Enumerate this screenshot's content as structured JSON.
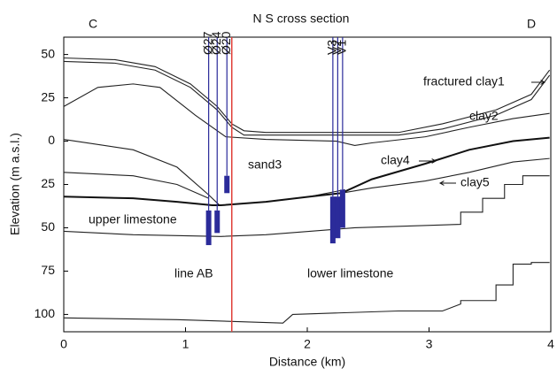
{
  "chart_data": {
    "type": "line",
    "title": "N  S cross section",
    "corner_labels": [
      "C",
      "D"
    ],
    "xlabel": "Distance (km)",
    "ylabel": "Elevation (m a.s.l.)",
    "xlim": [
      0,
      4
    ],
    "ylim": [
      -110,
      60
    ],
    "xticks": [
      0,
      1,
      2,
      3,
      4
    ],
    "yticks": [
      50,
      {
        "value": 25,
        "label": "25"
      },
      0,
      {
        "value": -25,
        "label": "25"
      },
      {
        "value": -50,
        "label": "50"
      },
      {
        "value": -75,
        "label": "75"
      },
      {
        "value": -100,
        "label": "100"
      }
    ],
    "series": [
      {
        "color": "#222222",
        "x": [
          0,
          0.42,
          0.75,
          1.04,
          1.26,
          1.38,
          1.48,
          1.66,
          2.75,
          3.11,
          3.55,
          3.84,
          3.99
        ],
        "values": [
          48,
          47,
          43,
          33,
          20,
          10,
          6,
          5,
          5,
          10,
          18,
          27,
          41
        ]
      },
      {
        "color": "#222222",
        "x": [
          0,
          0.42,
          0.75,
          1.04,
          1.26,
          1.38,
          1.48,
          1.66,
          2.75,
          3.11,
          3.55,
          3.84,
          3.99
        ],
        "values": [
          46,
          45,
          41,
          31,
          18,
          8,
          3.5,
          3.5,
          3.5,
          7,
          15,
          24,
          38
        ]
      },
      {
        "color": "#222222",
        "x": [
          0,
          0.28,
          0.57,
          0.79,
          1.08,
          1.33,
          1.66,
          2.24,
          2.39,
          2.53,
          2.97,
          3.33,
          3.69,
          3.99
        ],
        "values": [
          20,
          31,
          33,
          31,
          15,
          2.5,
          1,
          0,
          -2.5,
          -1,
          2.5,
          8,
          13,
          16
        ]
      },
      {
        "color": "#222222",
        "x": [
          0,
          0.57,
          0.93,
          1.19,
          1.28,
          1.66,
          2.02,
          2.31
        ],
        "values": [
          1,
          -5,
          -15,
          -31,
          -37,
          -35,
          -32,
          -28
        ]
      },
      {
        "color": "#111111",
        "x": [
          0,
          0.57,
          0.93,
          1.22,
          1.29,
          1.66,
          2.02,
          2.28,
          2.53,
          2.97,
          3.33,
          3.69,
          3.99
        ],
        "values": [
          -32,
          -33,
          -35,
          -37,
          -37,
          -35,
          -32,
          -30,
          -22,
          -13,
          -5,
          0,
          2
        ]
      },
      {
        "color": "#222222",
        "x": [
          2.28,
          2.53,
          2.97,
          3.33,
          3.69,
          3.99
        ],
        "values": [
          -30,
          -27,
          -23,
          -18,
          -12,
          -10
        ]
      },
      {
        "color": "#222222",
        "x": [
          0,
          0.57,
          0.93,
          1.19
        ],
        "values": [
          -18,
          -20,
          -25,
          -33
        ]
      },
      {
        "color": "#222222",
        "x": [
          0,
          0.57,
          1.29,
          1.66,
          2.39,
          3.26,
          3.26,
          3.44,
          3.44,
          3.62,
          3.62,
          3.77,
          3.77,
          3.99
        ],
        "values": [
          -52,
          -54,
          -55,
          -54,
          -50,
          -48,
          -41,
          -41,
          -33,
          -33,
          -25,
          -25,
          -20,
          -20
        ]
      },
      {
        "color": "#222222",
        "x": [
          0,
          0.93,
          1.8,
          1.88,
          2.75,
          3.11,
          3.26,
          3.26,
          3.55,
          3.55,
          3.69,
          3.69,
          3.84,
          3.84,
          3.99
        ],
        "values": [
          -102,
          -103,
          -105,
          -100,
          -98,
          -98,
          -94,
          -92,
          -92,
          -83,
          -83,
          -71,
          -71,
          -70,
          -70
        ]
      }
    ],
    "wells": [
      {
        "name": "Ø27",
        "x": 1.19,
        "screen": [
          -40,
          -60
        ]
      },
      {
        "name": "Ø24",
        "x": 1.26,
        "screen": [
          -40,
          -53
        ]
      },
      {
        "name": "Ø20",
        "x": 1.34,
        "screen": [
          -20,
          -30
        ]
      },
      {
        "name": "V3",
        "x": 2.21,
        "screen": [
          -32,
          -59
        ]
      },
      {
        "name": "V2",
        "x": 2.25,
        "screen": [
          -32,
          -56
        ]
      },
      {
        "name": "V1",
        "x": 2.29,
        "screen": [
          -28,
          -50
        ]
      }
    ],
    "well_color": "#2b2b9a",
    "line_ab_x": 1.38,
    "line_ab_color": "#e0403a",
    "annotations": [
      "fractured clay1",
      "clay2",
      "sand3",
      "clay4",
      "clay5",
      "upper limestone",
      "line AB",
      "lower limestone"
    ]
  }
}
